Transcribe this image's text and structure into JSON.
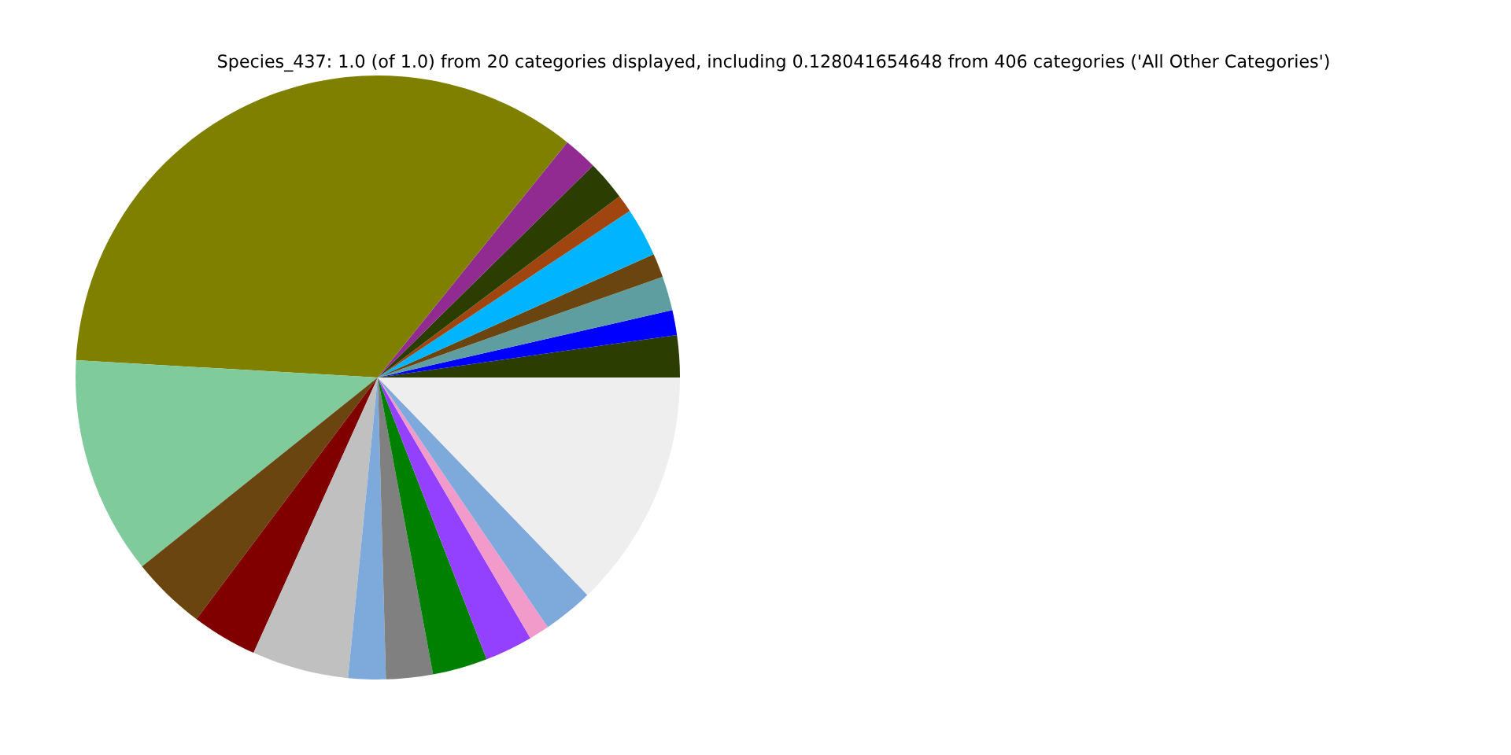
{
  "chart_data": {
    "type": "pie",
    "title": "Species_437: 1.0 (of 1.0) from 20 categories displayed, including 0.128041654648 from 406 categories ('All Other Categories')",
    "categories": [
      null,
      null,
      null,
      null,
      null,
      null,
      null,
      null,
      null,
      null,
      null,
      null,
      null,
      null,
      null,
      null,
      null,
      null,
      null,
      null
    ],
    "values": [
      2.25,
      1.33,
      1.83,
      1.28,
      2.61,
      0.94,
      2.14,
      1.83,
      34.88,
      11.67,
      4.0,
      3.5,
      5.17,
      2.0,
      2.5,
      2.94,
      2.56,
      1.08,
      2.69,
      12.8
    ],
    "colors": [
      "#2b3d00",
      "#0000ff",
      "#5f9ea0",
      "#6b4510",
      "#00b4ff",
      "#a0450f",
      "#2b3d00",
      "#912a91",
      "#808000",
      "#80cb9c",
      "#6b4510",
      "#800000",
      "#c0c0c0",
      "#7eaadb",
      "#808080",
      "#008000",
      "#9340ff",
      "#f29bcb",
      "#7eaadb",
      "#eeeeee"
    ]
  }
}
